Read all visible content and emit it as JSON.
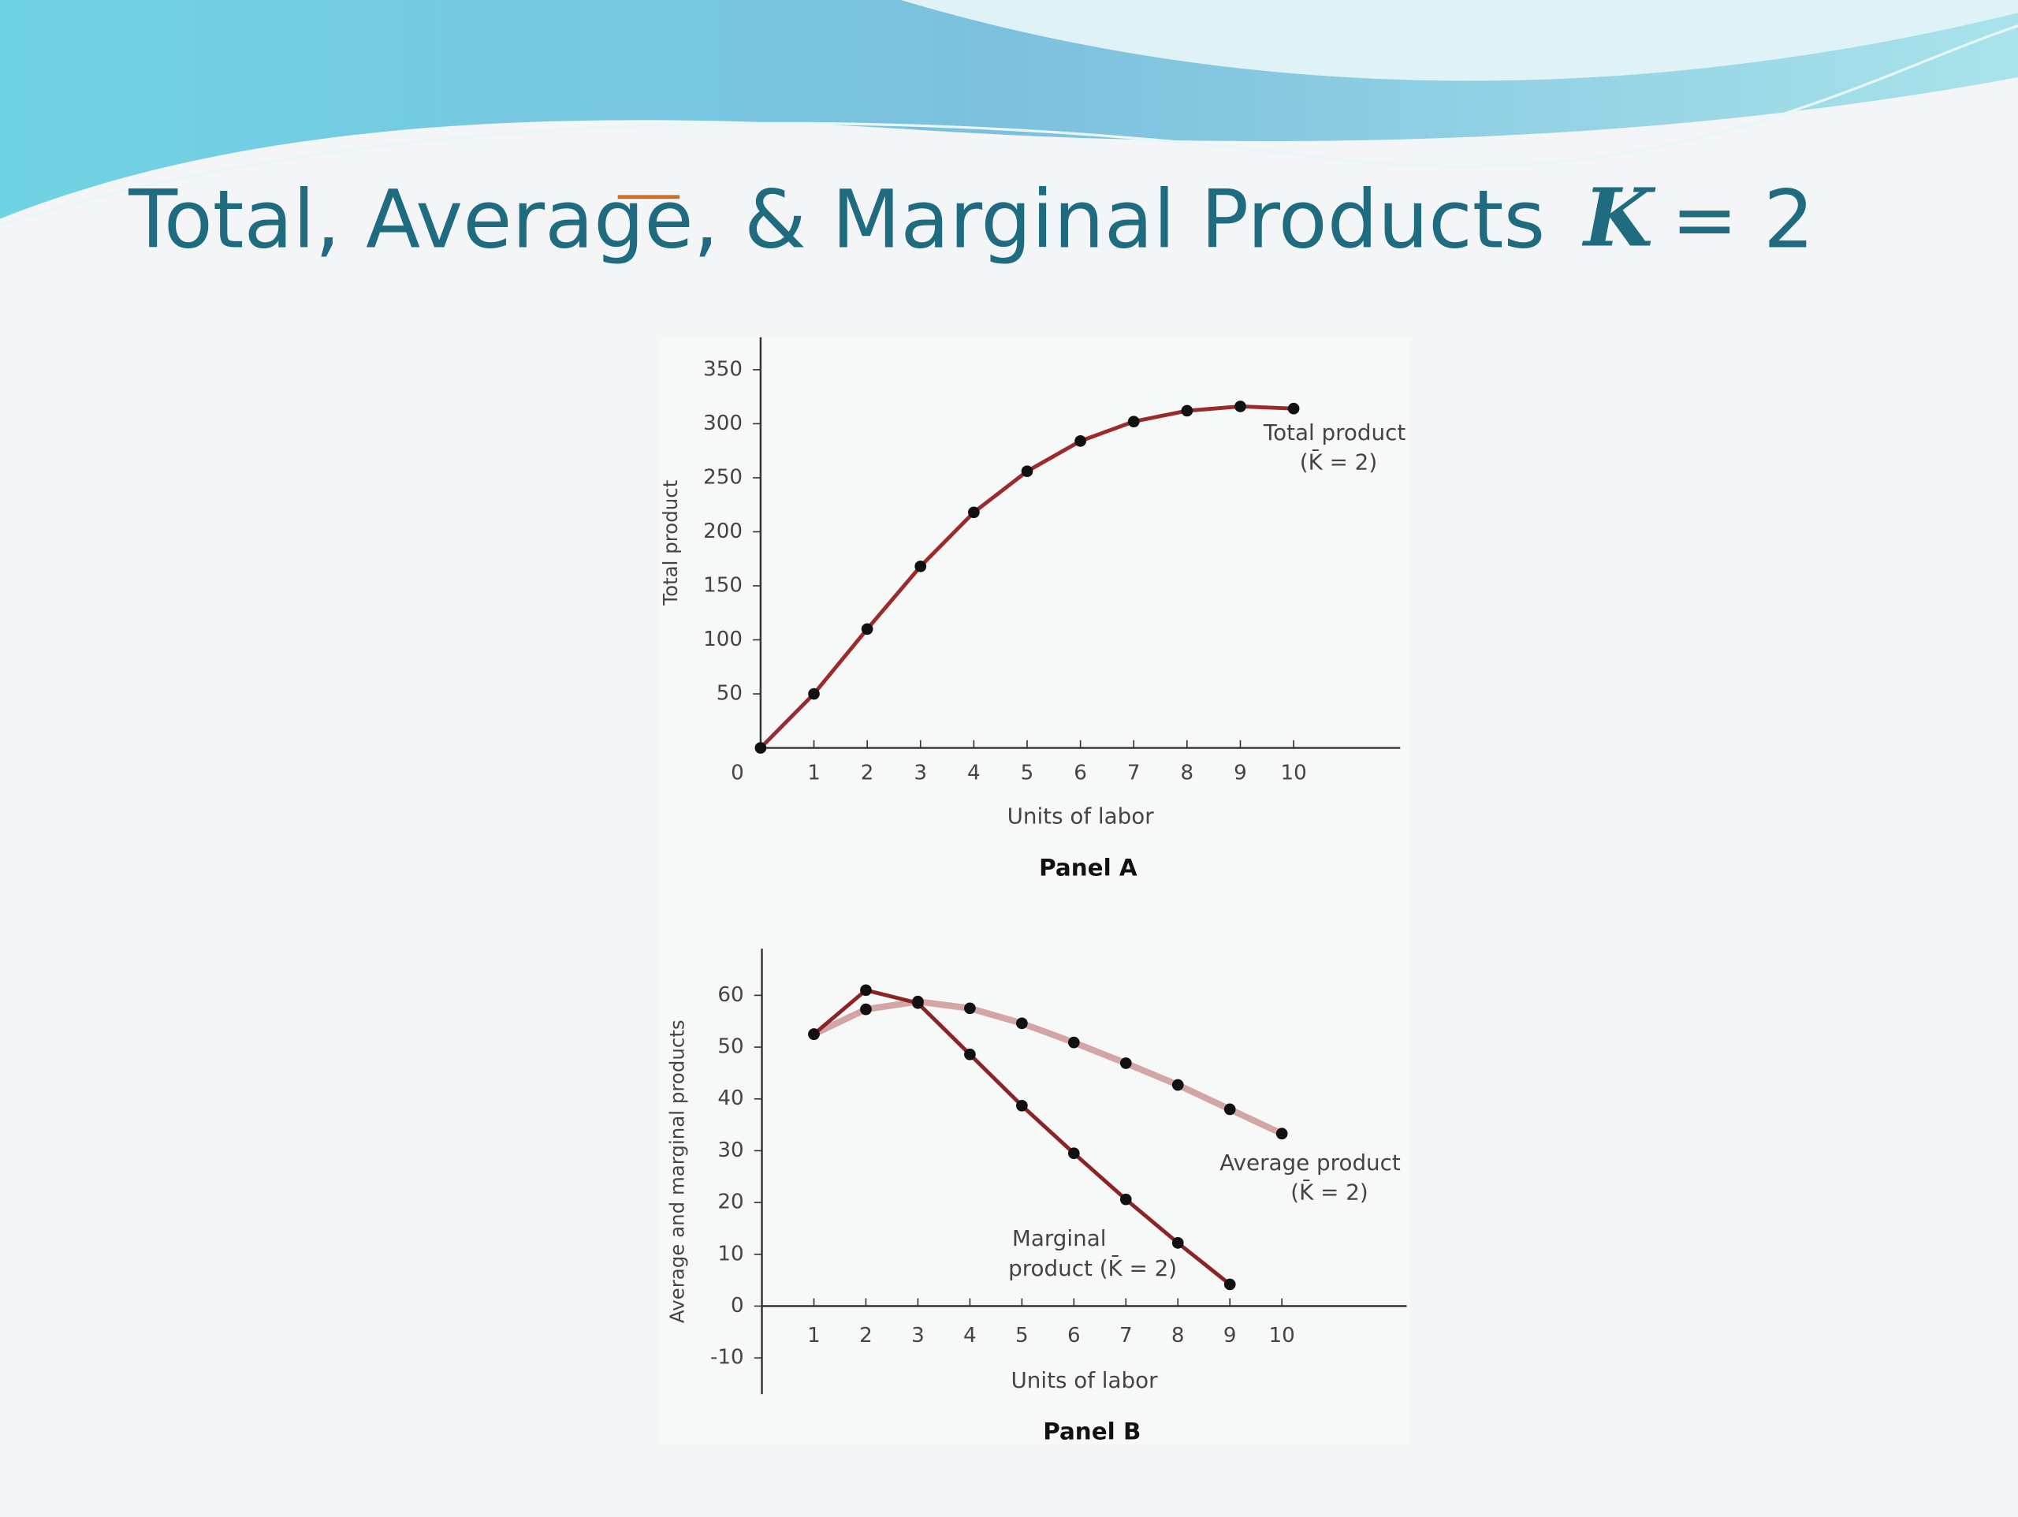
{
  "title": "Total, Average, & Marginal Products",
  "title_symbol": "K",
  "title_suffix": "= 2",
  "chart_data": [
    {
      "type": "line",
      "panel": "Panel A",
      "x_label": "Units of labor",
      "y_label": "Total product",
      "x": [
        0,
        1,
        2,
        3,
        4,
        5,
        6,
        7,
        8,
        9,
        10
      ],
      "series": [
        {
          "name": "Total product",
          "color": "#9b2a2a",
          "values": [
            0,
            50,
            110,
            168,
            218,
            256,
            284,
            302,
            312,
            316,
            314
          ]
        }
      ],
      "annotations": [
        "Total product",
        "(K̄ = 2)"
      ],
      "xlim": [
        0,
        12
      ],
      "ylim": [
        0,
        380
      ],
      "xticks": [
        0,
        1,
        2,
        3,
        4,
        5,
        6,
        7,
        8,
        9,
        10
      ],
      "yticks": [
        50,
        100,
        150,
        200,
        250,
        300,
        350
      ]
    },
    {
      "type": "line",
      "panel": "Panel B",
      "x_label": "Units of labor",
      "y_label": "Average and marginal products",
      "x": [
        1,
        2,
        3,
        4,
        5,
        6,
        7,
        8,
        9,
        10
      ],
      "series": [
        {
          "name": "Average product",
          "color": "#d4a5a5",
          "values": [
            52.5,
            57.3,
            58.8,
            57.5,
            54.6,
            50.9,
            46.9,
            42.7,
            38,
            33.3
          ]
        },
        {
          "name": "Marginal product",
          "color": "#8b2525",
          "values": [
            52.5,
            61,
            58.5,
            48.6,
            38.7,
            29.5,
            20.6,
            12.2,
            4.2,
            null
          ]
        }
      ],
      "annotations": [
        "Average product",
        "(K̄ = 2)",
        "Marginal",
        "product (K̄ = 2)"
      ],
      "xlim": [
        0,
        12.4
      ],
      "ylim": [
        -17,
        69
      ],
      "xticks": [
        1,
        2,
        3,
        4,
        5,
        6,
        7,
        8,
        9,
        10
      ],
      "yticks": [
        -10,
        0,
        10,
        20,
        30,
        40,
        50,
        60
      ]
    }
  ]
}
